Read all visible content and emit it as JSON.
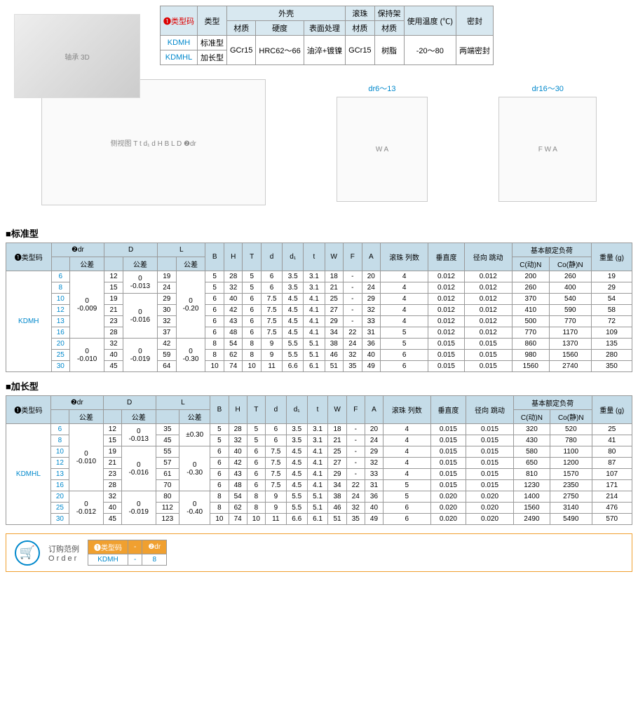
{
  "header": {
    "label_type_code": "❶类型码",
    "label_type": "类型",
    "group_shell": "外壳",
    "col_material": "材质",
    "col_hardness": "硬度",
    "col_surface": "表面处理",
    "group_ball": "滚珠",
    "group_cage": "保持架",
    "col_temp": "使用温度\n(℃)",
    "col_seal": "密封",
    "rows": [
      {
        "code": "KDMH",
        "type": "标准型"
      },
      {
        "code": "KDMHL",
        "type": "加长型"
      }
    ],
    "val_material": "GCr15",
    "val_hardness": "HRC62～66",
    "val_surface": "油淬+镀镍",
    "val_ball_mat": "GCr15",
    "val_cage_mat": "树脂",
    "val_temp": "-20～80",
    "val_seal": "两端密封"
  },
  "diagrams": {
    "flange1_label": "dr6～13",
    "flange2_label": "dr16～30",
    "dims": [
      "T",
      "t",
      "d₁",
      "d",
      "H",
      "B",
      "L",
      "D",
      "❷dr",
      "W",
      "A",
      "F"
    ]
  },
  "section1_title": "■标准型",
  "section2_title": "■加长型",
  "cols": {
    "type_code": "❶类型码",
    "dr": "❷dr",
    "tol": "公差",
    "D": "D",
    "L": "L",
    "B": "B",
    "H": "H",
    "T": "T",
    "d": "d",
    "d1": "d₁",
    "t": "t",
    "W": "W",
    "F": "F",
    "A": "A",
    "ball_rows": "滚珠\n列数",
    "perp": "垂直度",
    "runout": "径向\n跳动",
    "load": "基本额定负荷",
    "cdyn": "C(动)N",
    "cstat": "Co(静)N",
    "weight": "重量\n(g)"
  },
  "std": {
    "code": "KDMH",
    "tol_dr1": "0\n-0.009",
    "tol_dr2": "0\n-0.010",
    "tol_D1": "0\n-0.013",
    "tol_D2": "0\n-0.016",
    "tol_D3": "0\n-0.019",
    "tol_L1": "0\n-0.20",
    "tol_L2": "0\n-0.30",
    "rows": [
      {
        "dr": "6",
        "D": "12",
        "L": "19",
        "B": "5",
        "H": "28",
        "T": "5",
        "d": "6",
        "d1": "3.5",
        "t": "3.1",
        "W": "18",
        "F": "-",
        "A": "20",
        "br": "4",
        "perp": "0.012",
        "ro": "0.012",
        "cd": "200",
        "cs": "260",
        "wt": "19"
      },
      {
        "dr": "8",
        "D": "15",
        "L": "24",
        "B": "5",
        "H": "32",
        "T": "5",
        "d": "6",
        "d1": "3.5",
        "t": "3.1",
        "W": "21",
        "F": "-",
        "A": "24",
        "br": "4",
        "perp": "0.012",
        "ro": "0.012",
        "cd": "260",
        "cs": "400",
        "wt": "29"
      },
      {
        "dr": "10",
        "D": "19",
        "L": "29",
        "B": "6",
        "H": "40",
        "T": "6",
        "d": "7.5",
        "d1": "4.5",
        "t": "4.1",
        "W": "25",
        "F": "-",
        "A": "29",
        "br": "4",
        "perp": "0.012",
        "ro": "0.012",
        "cd": "370",
        "cs": "540",
        "wt": "54"
      },
      {
        "dr": "12",
        "D": "21",
        "L": "30",
        "B": "6",
        "H": "42",
        "T": "6",
        "d": "7.5",
        "d1": "4.5",
        "t": "4.1",
        "W": "27",
        "F": "-",
        "A": "32",
        "br": "4",
        "perp": "0.012",
        "ro": "0.012",
        "cd": "410",
        "cs": "590",
        "wt": "58"
      },
      {
        "dr": "13",
        "D": "23",
        "L": "32",
        "B": "6",
        "H": "43",
        "T": "6",
        "d": "7.5",
        "d1": "4.5",
        "t": "4.1",
        "W": "29",
        "F": "-",
        "A": "33",
        "br": "4",
        "perp": "0.012",
        "ro": "0.012",
        "cd": "500",
        "cs": "770",
        "wt": "72"
      },
      {
        "dr": "16",
        "D": "28",
        "L": "37",
        "B": "6",
        "H": "48",
        "T": "6",
        "d": "7.5",
        "d1": "4.5",
        "t": "4.1",
        "W": "34",
        "F": "22",
        "A": "31",
        "br": "5",
        "perp": "0.012",
        "ro": "0.012",
        "cd": "770",
        "cs": "1170",
        "wt": "109"
      },
      {
        "dr": "20",
        "D": "32",
        "L": "42",
        "B": "8",
        "H": "54",
        "T": "8",
        "d": "9",
        "d1": "5.5",
        "t": "5.1",
        "W": "38",
        "F": "24",
        "A": "36",
        "br": "5",
        "perp": "0.015",
        "ro": "0.015",
        "cd": "860",
        "cs": "1370",
        "wt": "135"
      },
      {
        "dr": "25",
        "D": "40",
        "L": "59",
        "B": "8",
        "H": "62",
        "T": "8",
        "d": "9",
        "d1": "5.5",
        "t": "5.1",
        "W": "46",
        "F": "32",
        "A": "40",
        "br": "6",
        "perp": "0.015",
        "ro": "0.015",
        "cd": "980",
        "cs": "1560",
        "wt": "280"
      },
      {
        "dr": "30",
        "D": "45",
        "L": "64",
        "B": "10",
        "H": "74",
        "T": "10",
        "d": "11",
        "d1": "6.6",
        "t": "6.1",
        "W": "51",
        "F": "35",
        "A": "49",
        "br": "6",
        "perp": "0.015",
        "ro": "0.015",
        "cd": "1560",
        "cs": "2740",
        "wt": "350"
      }
    ]
  },
  "long": {
    "code": "KDMHL",
    "tol_dr1": "0\n-0.010",
    "tol_dr2": "0\n-0.012",
    "tol_D1": "0\n-0.013",
    "tol_D2": "0\n-0.016",
    "tol_D3": "0\n-0.019",
    "tol_L1": "±0.30",
    "tol_L2": "0\n-0.30",
    "tol_L3": "0\n-0.40",
    "rows": [
      {
        "dr": "6",
        "D": "12",
        "L": "35",
        "B": "5",
        "H": "28",
        "T": "5",
        "d": "6",
        "d1": "3.5",
        "t": "3.1",
        "W": "18",
        "F": "-",
        "A": "20",
        "br": "4",
        "perp": "0.015",
        "ro": "0.015",
        "cd": "320",
        "cs": "520",
        "wt": "25"
      },
      {
        "dr": "8",
        "D": "15",
        "L": "45",
        "B": "5",
        "H": "32",
        "T": "5",
        "d": "6",
        "d1": "3.5",
        "t": "3.1",
        "W": "21",
        "F": "-",
        "A": "24",
        "br": "4",
        "perp": "0.015",
        "ro": "0.015",
        "cd": "430",
        "cs": "780",
        "wt": "41"
      },
      {
        "dr": "10",
        "D": "19",
        "L": "55",
        "B": "6",
        "H": "40",
        "T": "6",
        "d": "7.5",
        "d1": "4.5",
        "t": "4.1",
        "W": "25",
        "F": "-",
        "A": "29",
        "br": "4",
        "perp": "0.015",
        "ro": "0.015",
        "cd": "580",
        "cs": "1100",
        "wt": "80"
      },
      {
        "dr": "12",
        "D": "21",
        "L": "57",
        "B": "6",
        "H": "42",
        "T": "6",
        "d": "7.5",
        "d1": "4.5",
        "t": "4.1",
        "W": "27",
        "F": "-",
        "A": "32",
        "br": "4",
        "perp": "0.015",
        "ro": "0.015",
        "cd": "650",
        "cs": "1200",
        "wt": "87"
      },
      {
        "dr": "13",
        "D": "23",
        "L": "61",
        "B": "6",
        "H": "43",
        "T": "6",
        "d": "7.5",
        "d1": "4.5",
        "t": "4.1",
        "W": "29",
        "F": "-",
        "A": "33",
        "br": "4",
        "perp": "0.015",
        "ro": "0.015",
        "cd": "810",
        "cs": "1570",
        "wt": "107"
      },
      {
        "dr": "16",
        "D": "28",
        "L": "70",
        "B": "6",
        "H": "48",
        "T": "6",
        "d": "7.5",
        "d1": "4.5",
        "t": "4.1",
        "W": "34",
        "F": "22",
        "A": "31",
        "br": "5",
        "perp": "0.015",
        "ro": "0.015",
        "cd": "1230",
        "cs": "2350",
        "wt": "171"
      },
      {
        "dr": "20",
        "D": "32",
        "L": "80",
        "B": "8",
        "H": "54",
        "T": "8",
        "d": "9",
        "d1": "5.5",
        "t": "5.1",
        "W": "38",
        "F": "24",
        "A": "36",
        "br": "5",
        "perp": "0.020",
        "ro": "0.020",
        "cd": "1400",
        "cs": "2750",
        "wt": "214"
      },
      {
        "dr": "25",
        "D": "40",
        "L": "112",
        "B": "8",
        "H": "62",
        "T": "8",
        "d": "9",
        "d1": "5.5",
        "t": "5.1",
        "W": "46",
        "F": "32",
        "A": "40",
        "br": "6",
        "perp": "0.020",
        "ro": "0.020",
        "cd": "1560",
        "cs": "3140",
        "wt": "476"
      },
      {
        "dr": "30",
        "D": "45",
        "L": "123",
        "B": "10",
        "H": "74",
        "T": "10",
        "d": "11",
        "d1": "6.6",
        "t": "6.1",
        "W": "51",
        "F": "35",
        "A": "49",
        "br": "6",
        "perp": "0.020",
        "ro": "0.020",
        "cd": "2490",
        "cs": "5490",
        "wt": "570"
      }
    ]
  },
  "order": {
    "label_cn": "订购范例",
    "label_en": "O r d e r",
    "h1": "❶类型码",
    "h2": "❷dr",
    "v1": "KDMH",
    "v2": "8",
    "dash": "-"
  },
  "colors": {
    "header_bg": "#d8e8f0",
    "th_bg": "#c5dce8",
    "accent_blue": "#0088cc",
    "accent_red": "#d00000",
    "order_border": "#f0a030",
    "border": "#999999"
  }
}
